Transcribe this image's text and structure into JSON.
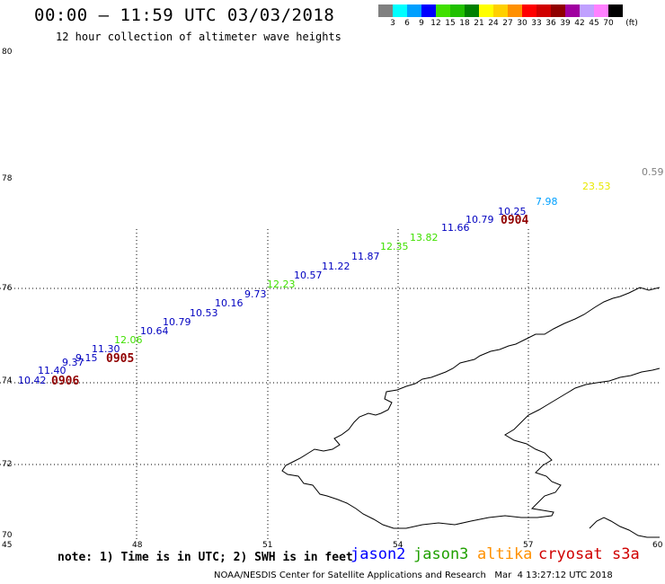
{
  "header": {
    "title": "00:00 – 11:59 UTC 03/03/2018",
    "subtitle": "12 hour collection of altimeter wave heights"
  },
  "legend": {
    "unit": "(ft)",
    "colors": [
      "#808080",
      "#00ffff",
      "#00a0ff",
      "#0000ff",
      "#40e000",
      "#20c000",
      "#008000",
      "#ffff00",
      "#ffd000",
      "#ff9000",
      "#ff0000",
      "#d00000",
      "#900000",
      "#a000a0",
      "#c0a0ff",
      "#ff80ff",
      "#000000"
    ],
    "labels": [
      "3",
      "6",
      "9",
      "12",
      "15",
      "18",
      "21",
      "24",
      "27",
      "30",
      "33",
      "36",
      "39",
      "42",
      "45",
      "70"
    ]
  },
  "map": {
    "lat_labels": [
      "80",
      "78",
      "76",
      "74",
      "72",
      "70"
    ],
    "lon_labels": [
      "45",
      "48",
      "51",
      "54",
      "57",
      "60"
    ],
    "observations": [
      {
        "text": "10.42",
        "color": "#0000c0"
      },
      {
        "text": "11.40",
        "color": "#0000c0"
      },
      {
        "text": "9.37",
        "color": "#0000c0"
      },
      {
        "text": "9.15",
        "color": "#0000c0"
      },
      {
        "text": "11.30",
        "color": "#0000c0"
      },
      {
        "text": "12.06",
        "color": "#40e000"
      },
      {
        "text": "10.64",
        "color": "#0000c0"
      },
      {
        "text": "10.79",
        "color": "#0000c0"
      },
      {
        "text": "10.53",
        "color": "#0000c0"
      },
      {
        "text": "10.16",
        "color": "#0000c0"
      },
      {
        "text": "9.73",
        "color": "#0000c0"
      },
      {
        "text": "12.23",
        "color": "#40e000"
      },
      {
        "text": "10.57",
        "color": "#0000c0"
      },
      {
        "text": "11.22",
        "color": "#0000c0"
      },
      {
        "text": "11.87",
        "color": "#0000c0"
      },
      {
        "text": "12.35",
        "color": "#40e000"
      },
      {
        "text": "13.82",
        "color": "#40e000"
      },
      {
        "text": "11.66",
        "color": "#0000c0"
      },
      {
        "text": "10.79",
        "color": "#0000c0"
      },
      {
        "text": "10.25",
        "color": "#0000c0"
      },
      {
        "text": "7.98",
        "color": "#00a0ff"
      },
      {
        "text": "23.53",
        "color": "#e8e800"
      },
      {
        "text": "0.59",
        "color": "#808080"
      }
    ],
    "time_labels": [
      "0906",
      "0905",
      "0904"
    ]
  },
  "footer": {
    "note": "note: 1) Time is in UTC; 2) SWH is in feet",
    "satellites": [
      {
        "name": "jason2",
        "color": "#0000ff"
      },
      {
        "name": "jason3",
        "color": "#20a000"
      },
      {
        "name": "altika",
        "color": "#ff9000"
      },
      {
        "name": "cryosat",
        "color": "#d00000"
      },
      {
        "name": "s3a",
        "color": "#d00000"
      }
    ],
    "credit": "NOAA/NESDIS Center for Satellite Applications and Research   Mar  4 13:27:12 UTC 2018"
  }
}
